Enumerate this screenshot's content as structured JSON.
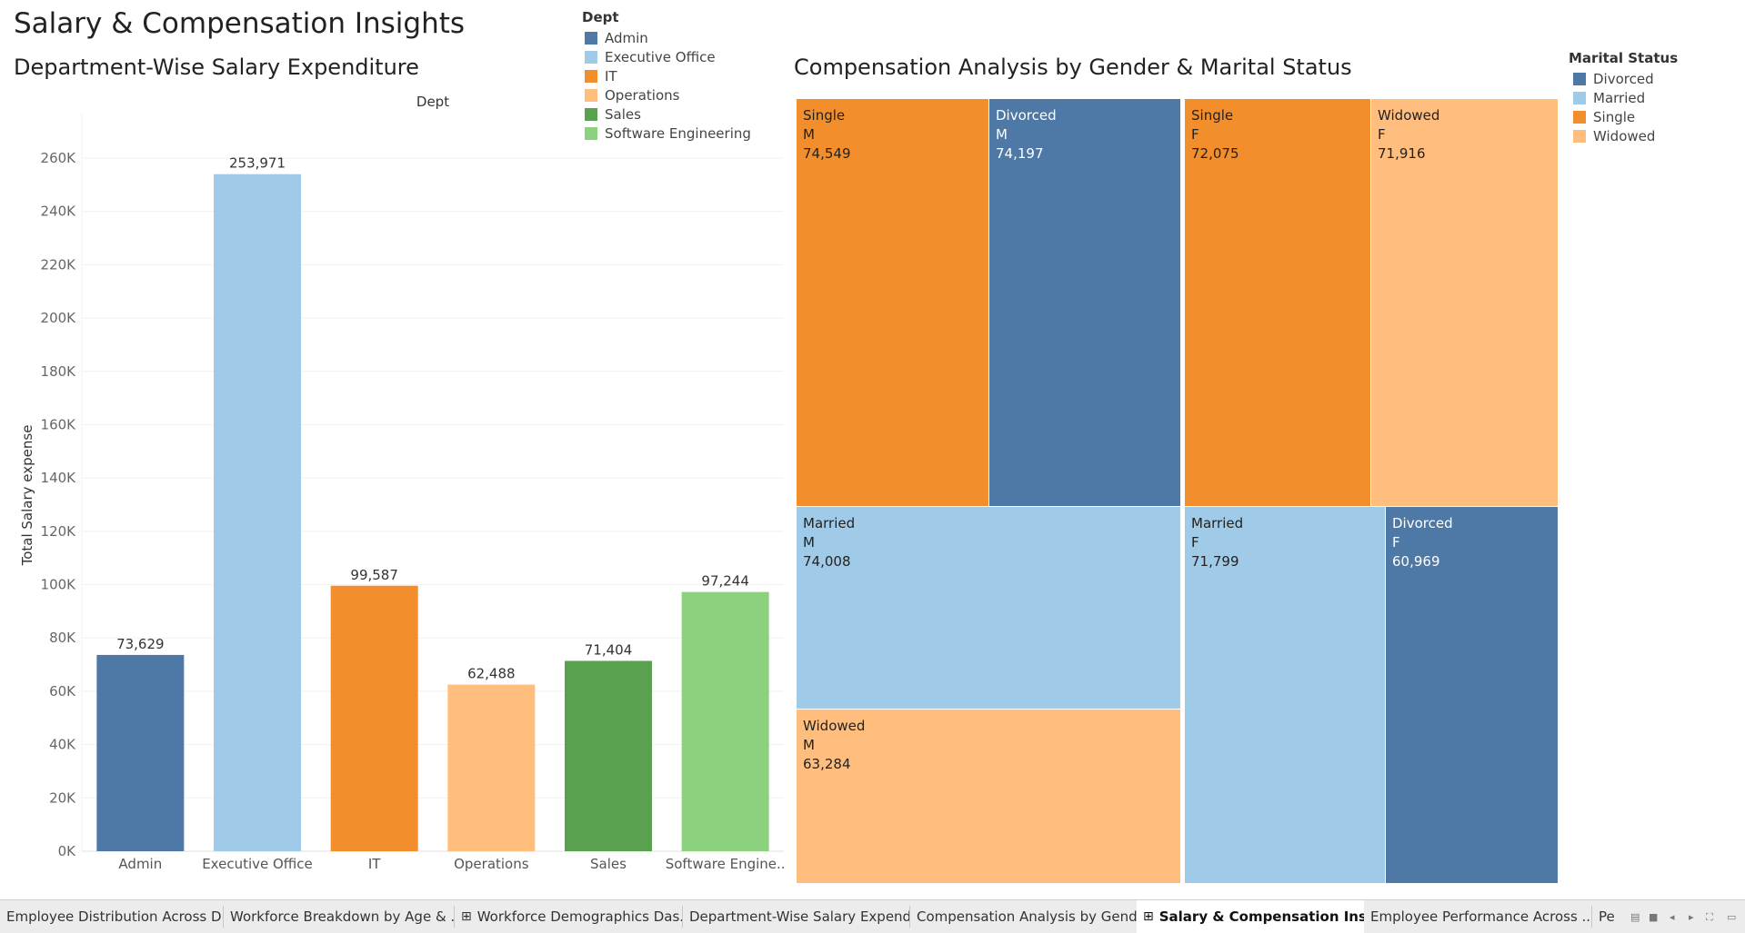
{
  "dashboard": {
    "title": "Salary & Compensation Insights"
  },
  "bar_sheet": {
    "title": "Department-Wise Salary Expenditure",
    "legend": {
      "title": "Dept",
      "items": [
        {
          "label": "Admin",
          "color": "#4e79a7"
        },
        {
          "label": "Executive Office",
          "color": "#a0cbe8"
        },
        {
          "label": "IT",
          "color": "#f28e2b"
        },
        {
          "label": "Operations",
          "color": "#ffbe7d"
        },
        {
          "label": "Sales",
          "color": "#59a14f"
        },
        {
          "label": "Software Engineering",
          "color": "#8cd17d"
        }
      ]
    }
  },
  "treemap_sheet": {
    "title": "Compensation Analysis by Gender & Marital Status",
    "legend": {
      "title": "Marital Status",
      "items": [
        {
          "label": "Divorced",
          "color": "#4e79a7"
        },
        {
          "label": "Married",
          "color": "#a0cbe8"
        },
        {
          "label": "Single",
          "color": "#f28e2b"
        },
        {
          "label": "Widowed",
          "color": "#ffbe7d"
        }
      ]
    },
    "cells": [
      {
        "status": "Single",
        "gender": "M",
        "value": "74,549"
      },
      {
        "status": "Divorced",
        "gender": "M",
        "value": "74,197"
      },
      {
        "status": "Single",
        "gender": "F",
        "value": "72,075"
      },
      {
        "status": "Widowed",
        "gender": "F",
        "value": "71,916"
      },
      {
        "status": "Married",
        "gender": "M",
        "value": "74,008"
      },
      {
        "status": "Married",
        "gender": "F",
        "value": "71,799"
      },
      {
        "status": "Divorced",
        "gender": "F",
        "value": "60,969"
      },
      {
        "status": "Widowed",
        "gender": "M",
        "value": "63,284"
      }
    ]
  },
  "chart_data": {
    "type": "bar",
    "title": "Department-Wise Salary Expenditure",
    "header": "Dept",
    "xlabel": "",
    "ylabel": "Total Salary expense",
    "categories": [
      "Admin",
      "Executive Office",
      "IT",
      "Operations",
      "Sales",
      "Software Engineering"
    ],
    "category_tick_labels": [
      "Admin",
      "Executive Office",
      "IT",
      "Operations",
      "Sales",
      "Software Engine.."
    ],
    "values": [
      73629,
      253971,
      99587,
      62488,
      71404,
      97244
    ],
    "value_labels": [
      "73,629",
      "253,971",
      "99,587",
      "62,488",
      "71,404",
      "97,244"
    ],
    "colors": [
      "#4e79a7",
      "#a0cbe8",
      "#f28e2b",
      "#ffbe7d",
      "#59a14f",
      "#8cd17d"
    ],
    "ylim": [
      0,
      270000
    ],
    "yticks": [
      0,
      20000,
      40000,
      60000,
      80000,
      100000,
      120000,
      140000,
      160000,
      180000,
      200000,
      220000,
      240000,
      260000
    ],
    "ytick_labels": [
      "0K",
      "20K",
      "40K",
      "60K",
      "80K",
      "100K",
      "120K",
      "140K",
      "160K",
      "180K",
      "200K",
      "220K",
      "240K",
      "260K"
    ],
    "grid": true,
    "legend": "top-right"
  },
  "tabs": [
    {
      "label": "Employee Distribution Across D...",
      "active": false,
      "grid": false
    },
    {
      "label": "Workforce Breakdown by Age & ...",
      "active": false,
      "grid": false
    },
    {
      "label": "Workforce Demographics Das...",
      "active": false,
      "grid": true
    },
    {
      "label": "Department-Wise Salary Expend...",
      "active": false,
      "grid": false
    },
    {
      "label": "Compensation Analysis by Gend...",
      "active": false,
      "grid": false
    },
    {
      "label": "Salary & Compensation Insi...",
      "active": true,
      "grid": true
    },
    {
      "label": "Employee Performance Across ...",
      "active": false,
      "grid": false
    },
    {
      "label": "Pe",
      "active": false,
      "grid": false
    }
  ],
  "icons": {
    "dashboard_grid": "dashboard-grid-icon",
    "nav": [
      "sheet-sorter-icon",
      "filmstrip-icon",
      "previous-sheet-icon",
      "next-sheet-icon",
      "fullscreen-icon",
      "presentation-icon"
    ]
  }
}
